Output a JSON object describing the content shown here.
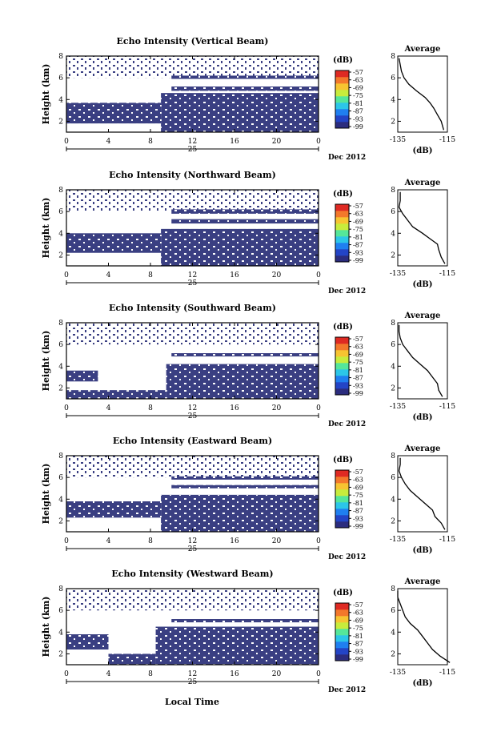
{
  "figure": {
    "xlabel": "Local Time",
    "date_label": "Dec 2012",
    "day_label": "25",
    "colorbar_unit": "(dB)",
    "average_title": "Average",
    "average_unit": "(dB)",
    "height_label": "Height (km)",
    "colors": {
      "echo": "#3a3f82",
      "scale": [
        "#2b2c7e",
        "#2344c6",
        "#1f7ff0",
        "#2cc6e8",
        "#55e69a",
        "#c8ec3c",
        "#f7c431",
        "#f3782b",
        "#df2a23"
      ]
    }
  },
  "chart_data": [
    {
      "type": "heatmap",
      "title": "Echo Intensity (Vertical Beam)",
      "xlabel": "Local Time",
      "ylabel": "Height (km)",
      "x_ticks": [
        "0",
        "4",
        "8",
        "12",
        "16",
        "20",
        "0"
      ],
      "x_range_hours": [
        0,
        24
      ],
      "y_ticks": [
        "2",
        "4",
        "6",
        "8"
      ],
      "y_range_km": [
        1,
        8
      ],
      "colorbar": {
        "unit": "(dB)",
        "ticks": [
          "-57",
          "-63",
          "-69",
          "-75",
          "-81",
          "-87",
          "-93",
          "-99"
        ]
      },
      "echo_layers_km": [
        {
          "from_hour": 0,
          "to_hour": 9,
          "bottom": 1.8,
          "top": 3.7
        },
        {
          "from_hour": 9,
          "to_hour": 24,
          "bottom": 1.0,
          "top": 4.6
        },
        {
          "from_hour": 10,
          "to_hour": 24,
          "bottom": 4.8,
          "top": 5.2
        },
        {
          "from_hour": 10,
          "to_hour": 24,
          "bottom": 5.9,
          "top": 6.2
        }
      ],
      "average_profile": {
        "title": "Average",
        "xlabel": "(dB)",
        "x_ticks": [
          "-135",
          "-115"
        ],
        "x_range": [
          -135,
          -115
        ],
        "y_ticks": [
          "2",
          "4",
          "6",
          "8"
        ],
        "y_range": [
          1,
          8
        ],
        "height_km": [
          1.2,
          2.0,
          2.6,
          3.2,
          3.7,
          4.2,
          4.8,
          5.4,
          6.0,
          6.6,
          7.2,
          7.8
        ],
        "db": [
          -116.5,
          -117.5,
          -119,
          -120.5,
          -122,
          -124,
          -127.5,
          -130.5,
          -132.5,
          -133.5,
          -134,
          -134.5
        ]
      }
    },
    {
      "type": "heatmap",
      "title": "Echo Intensity (Northward Beam)",
      "xlabel": "Local Time",
      "ylabel": "Height (km)",
      "x_ticks": [
        "0",
        "4",
        "8",
        "12",
        "16",
        "20",
        "0"
      ],
      "x_range_hours": [
        0,
        24
      ],
      "y_ticks": [
        "2",
        "4",
        "6",
        "8"
      ],
      "y_range_km": [
        1,
        8
      ],
      "colorbar": {
        "unit": "(dB)",
        "ticks": [
          "-57",
          "-63",
          "-69",
          "-75",
          "-81",
          "-87",
          "-93",
          "-99"
        ]
      },
      "echo_layers_km": [
        {
          "from_hour": 0,
          "to_hour": 9,
          "bottom": 2.2,
          "top": 4.0
        },
        {
          "from_hour": 9,
          "to_hour": 24,
          "bottom": 1.0,
          "top": 4.4
        },
        {
          "from_hour": 10,
          "to_hour": 24,
          "bottom": 4.9,
          "top": 5.3
        },
        {
          "from_hour": 10,
          "to_hour": 24,
          "bottom": 5.8,
          "top": 6.2
        }
      ],
      "average_profile": {
        "title": "Average",
        "xlabel": "(dB)",
        "x_ticks": [
          "-135",
          "-115"
        ],
        "x_range": [
          -135,
          -115
        ],
        "y_ticks": [
          "2",
          "4",
          "6",
          "8"
        ],
        "y_range": [
          1,
          8
        ],
        "height_km": [
          1.2,
          1.8,
          2.5,
          3.0,
          3.5,
          4.0,
          4.6,
          5.2,
          5.8,
          6.4,
          7.0,
          7.8
        ],
        "db": [
          -116,
          -117.5,
          -118.5,
          -119,
          -122,
          -125,
          -129,
          -131,
          -133,
          -134.5,
          -134,
          -134
        ]
      }
    },
    {
      "type": "heatmap",
      "title": "Echo Intensity (Southward Beam)",
      "xlabel": "Local Time",
      "ylabel": "Height (km)",
      "x_ticks": [
        "0",
        "4",
        "8",
        "12",
        "16",
        "20",
        "0"
      ],
      "x_range_hours": [
        0,
        24
      ],
      "y_ticks": [
        "2",
        "4",
        "6",
        "8"
      ],
      "y_range_km": [
        1,
        8
      ],
      "colorbar": {
        "unit": "(dB)",
        "ticks": [
          "-57",
          "-63",
          "-69",
          "-75",
          "-81",
          "-87",
          "-93",
          "-99"
        ]
      },
      "echo_layers_km": [
        {
          "from_hour": 0,
          "to_hour": 3,
          "bottom": 2.6,
          "top": 3.6
        },
        {
          "from_hour": 0,
          "to_hour": 9.5,
          "bottom": 1.0,
          "top": 1.8
        },
        {
          "from_hour": 9.5,
          "to_hour": 24,
          "bottom": 1.0,
          "top": 4.2
        },
        {
          "from_hour": 10,
          "to_hour": 24,
          "bottom": 4.9,
          "top": 5.2
        }
      ],
      "average_profile": {
        "title": "Average",
        "xlabel": "(dB)",
        "x_ticks": [
          "-135",
          "-115"
        ],
        "x_range": [
          -135,
          -115
        ],
        "y_ticks": [
          "2",
          "4",
          "6",
          "8"
        ],
        "y_range": [
          1,
          8
        ],
        "height_km": [
          1.2,
          1.8,
          2.4,
          3.0,
          3.6,
          4.2,
          4.8,
          5.4,
          6.0,
          6.6,
          7.2,
          7.8
        ],
        "db": [
          -117,
          -118.5,
          -119,
          -121,
          -123,
          -126,
          -129,
          -131,
          -133,
          -134,
          -134.5,
          -134.5
        ]
      }
    },
    {
      "type": "heatmap",
      "title": "Echo Intensity (Eastward Beam)",
      "xlabel": "Local Time",
      "ylabel": "Height (km)",
      "x_ticks": [
        "0",
        "4",
        "8",
        "12",
        "16",
        "20",
        "0"
      ],
      "x_range_hours": [
        0,
        24
      ],
      "y_ticks": [
        "2",
        "4",
        "6",
        "8"
      ],
      "y_range_km": [
        1,
        8
      ],
      "colorbar": {
        "unit": "(dB)",
        "ticks": [
          "-57",
          "-63",
          "-69",
          "-75",
          "-81",
          "-87",
          "-93",
          "-99"
        ]
      },
      "echo_layers_km": [
        {
          "from_hour": 0,
          "to_hour": 9,
          "bottom": 2.3,
          "top": 3.8
        },
        {
          "from_hour": 9,
          "to_hour": 24,
          "bottom": 1.0,
          "top": 4.4
        },
        {
          "from_hour": 10,
          "to_hour": 24,
          "bottom": 5.0,
          "top": 5.3
        },
        {
          "from_hour": 10,
          "to_hour": 24,
          "bottom": 5.8,
          "top": 6.1
        }
      ],
      "average_profile": {
        "title": "Average",
        "xlabel": "(dB)",
        "x_ticks": [
          "-135",
          "-115"
        ],
        "x_range": [
          -135,
          -115
        ],
        "y_ticks": [
          "2",
          "4",
          "6",
          "8"
        ],
        "y_range": [
          1,
          8
        ],
        "height_km": [
          1.2,
          1.8,
          2.4,
          3.0,
          3.6,
          4.2,
          4.8,
          5.4,
          6.0,
          6.6,
          7.2,
          7.8
        ],
        "db": [
          -116,
          -117.5,
          -120,
          -121,
          -124,
          -127,
          -130,
          -132,
          -133.5,
          -134.5,
          -134,
          -134
        ]
      }
    },
    {
      "type": "heatmap",
      "title": "Echo Intensity (Westward Beam)",
      "xlabel": "Local Time",
      "ylabel": "Height (km)",
      "x_ticks": [
        "0",
        "4",
        "8",
        "12",
        "16",
        "20",
        "0"
      ],
      "x_range_hours": [
        0,
        24
      ],
      "y_ticks": [
        "2",
        "4",
        "6",
        "8"
      ],
      "y_range_km": [
        1,
        8
      ],
      "colorbar": {
        "unit": "(dB)",
        "ticks": [
          "-57",
          "-63",
          "-69",
          "-75",
          "-81",
          "-87",
          "-93",
          "-99"
        ]
      },
      "echo_layers_km": [
        {
          "from_hour": 0,
          "to_hour": 4,
          "bottom": 2.4,
          "top": 3.8
        },
        {
          "from_hour": 4,
          "to_hour": 8.5,
          "bottom": 1.0,
          "top": 2.0
        },
        {
          "from_hour": 8.5,
          "to_hour": 24,
          "bottom": 1.0,
          "top": 4.5
        },
        {
          "from_hour": 10,
          "to_hour": 24,
          "bottom": 4.9,
          "top": 5.2
        }
      ],
      "average_profile": {
        "title": "Average",
        "xlabel": "(dB)",
        "x_ticks": [
          "-135",
          "-115"
        ],
        "x_range": [
          -135,
          -115
        ],
        "y_ticks": [
          "2",
          "4",
          "6",
          "8"
        ],
        "y_range": [
          1,
          8
        ],
        "height_km": [
          1.2,
          1.8,
          2.4,
          3.0,
          3.6,
          4.2,
          4.8,
          5.4,
          6.0,
          6.6,
          7.2,
          7.8
        ],
        "db": [
          -114,
          -118,
          -121,
          -123,
          -125,
          -127,
          -130,
          -132,
          -133,
          -134,
          -135,
          -135
        ]
      }
    }
  ]
}
